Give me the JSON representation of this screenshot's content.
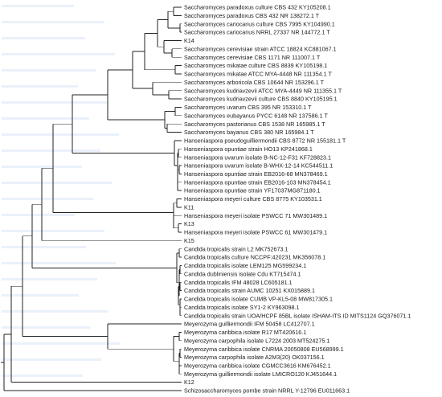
{
  "tree": {
    "leaves": [
      "Saccharomyces paradoxus culture CBS 432 KY105208.1",
      "Saccharomyces paradoxus CBS 432 NR 138272.1 T",
      "Saccharomyces cariocanus culture CBS 7995 KY104990.1",
      "Saccharomyces cariocanus NRRL 27337 NR 144772.1 T",
      "K14",
      "Saccharomyces cerevisiae strain ATCC 18824 KC881067.1",
      "Saccharomyces cerevisiae CBS 1171 NR 111007.1 T",
      "Saccharomyces mikatae culture CBS 8839 KY105198.1",
      "Saccharomyces mikatae ATCC MYA-4448 NR 111354.1 T",
      "Saccharomyces arboricola CBS 10644 NR 153296.1 T",
      "Saccharomyces kudriavzevii ATCC MYA-4449 NR 111355.1 T",
      "Saccharomyces kudriavzevii culture CBS 8840 KY105195.1",
      "Saccharomyces uvarum CBS 395 NR 153310.1 T",
      "Saccharomyces eubayanus PYCC 6148 NR 137586.1 T",
      "Saccharomyces pastorianus CBS 1538 NR 165985.1 T",
      "Saccharomyces bayanus CBS 380 NR 165984.1 T",
      "Hanseniaspora pseudoguilliermondii CBS 8772 NR 155181.1 T",
      "Hanseniaspora opuntiae strain HO13 KP241868.1",
      "Hanseniaspora uvarum isolate B-NC-12-F31 KF728823.1",
      "Hanseniaspora uvarum isolate B-WHX-12-14 KC544511.1",
      "Hanseniaspora opuntiae strain EB2016-68 MN378469.1",
      "Hanseniaspora opuntiae strain EB2016-103 MN378454.1",
      "Hanseniaspora opuntiae strain YF17037MG871180.1",
      "Hanseniaspora meyeri culture CBS 8775 KY103531.1",
      "K11",
      "Hanseniaspora meyeri isolate PSWCC 71 MW301489.1",
      "K13",
      "Hanseniaspora meyeri isolate PSWCC 61 MW301479.1",
      "K15",
      "Candida tropicalis strain L2 MK752673.1",
      "Candida tropicalis culture NCCPF:420231 MK356078.1",
      "Candida tropicalis isolate LEM125 MG599234.1",
      "Candida dubliniensis isolate Cdu KT715474.1",
      "Candida tropicalis IFM 48028 LC605181.1",
      "Candida tropicalis strain AUMC 10251 KX015889.1",
      "Candida tropicalis isolate CUMB VP-KL5-08 MW817305.1",
      "Candida tropicalis isolate SY1-2 KY963098.1",
      "Candida tropicalis strain UOA/HCPF 85BL isolate ISHAM-ITS ID MITS1124 GQ376071.1",
      "Meyerozyma guilliermondii IFM 50458 LC412707.1",
      "Meyerozyma caribbica isolate R17 MT420616.1",
      "Meyerozyma carpophila isolate L7224 2003 MT524275.1",
      "Meyerozyma caribbica isolate CNRMA 20050808 EU568999.1",
      "Meyerozyma carpophila isolate A2M3(20) OK037156.1",
      "Meyerozyma caribbica isolate CGMCC3616 KM676452.1",
      "Meyerozyma guilliermondii isolate LMICRO120 KJ451644.1",
      "K12",
      "Schizosaccharomyces pombe strain NRRL Y-12796 EU011663.1"
    ]
  }
}
